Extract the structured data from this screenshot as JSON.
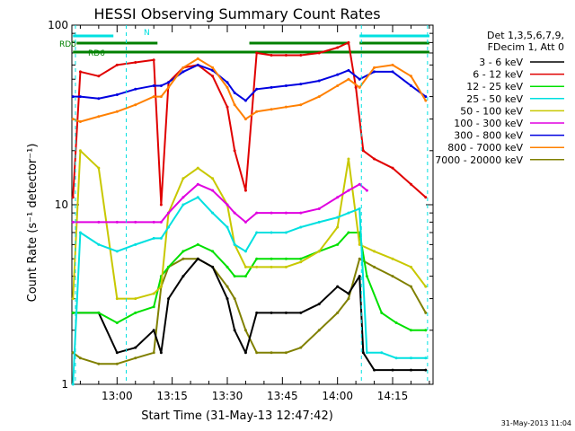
{
  "chart_data": {
    "type": "line",
    "title": "HESSI Observing Summary Count Rates",
    "xlabel": "Start Time (31-May-13 12:47:42)",
    "ylabel": "Count Rate (s⁻¹ detector⁻¹)",
    "y_scale": "log",
    "ylim": [
      1,
      100
    ],
    "xlim": [
      "12:47:42",
      "14:26:00"
    ],
    "x_ticks": [
      "13:00",
      "13:15",
      "13:30",
      "13:45",
      "14:00",
      "14:15"
    ],
    "y_ticks": [
      "1",
      "10",
      "100"
    ],
    "grid": false,
    "legend_position": "right",
    "legend_header": [
      "Det 1,3,5,6,7,9,",
      "FDecim 1, Att 0"
    ],
    "footer": "31-May-2013 11:04",
    "annotations": {
      "N": "N",
      "RD0": "RD0",
      "RD6": "RD6"
    },
    "bars": {
      "N": [
        [
          "12:48",
          "12:59"
        ],
        [
          "14:06",
          "14:25"
        ]
      ],
      "RD0": [
        [
          "12:49",
          "13:11"
        ],
        [
          "13:36",
          "14:03"
        ],
        [
          "14:06",
          "14:25"
        ]
      ],
      "RD6": [
        [
          "12:48",
          "14:25"
        ]
      ]
    },
    "dashed_lines": [
      "12:48:40",
      "13:02:30",
      "14:06:30",
      "14:24:30"
    ],
    "series": [
      {
        "name": "3 - 6 keV",
        "color": "#000000",
        "x": [
          "12:48",
          "12:55",
          "13:00",
          "13:05",
          "13:10",
          "13:12",
          "13:14",
          "13:18",
          "13:22",
          "13:26",
          "13:30",
          "13:32",
          "13:35",
          "13:38",
          "13:42",
          "13:46",
          "13:50",
          "13:55",
          "14:00",
          "14:03",
          "14:06",
          "14:07",
          "14:10",
          "14:15",
          "14:20",
          "14:24"
        ],
        "values": [
          2.5,
          2.5,
          1.5,
          1.6,
          2.0,
          1.5,
          3.0,
          4.0,
          5.0,
          4.5,
          3.0,
          2.0,
          1.5,
          2.5,
          2.5,
          2.5,
          2.5,
          2.8,
          3.5,
          3.2,
          4.0,
          1.5,
          1.2,
          1.2,
          1.2,
          1.2
        ]
      },
      {
        "name": "6 - 12 keV",
        "color": "#e00000",
        "x": [
          "12:48",
          "12:50",
          "12:55",
          "13:00",
          "13:05",
          "13:10",
          "13:12",
          "13:14",
          "13:18",
          "13:22",
          "13:26",
          "13:30",
          "13:32",
          "13:35",
          "13:38",
          "13:42",
          "13:46",
          "13:50",
          "13:55",
          "14:00",
          "14:03",
          "14:05",
          "14:07",
          "14:10",
          "14:15",
          "14:20",
          "14:24"
        ],
        "values": [
          11,
          55,
          52,
          60,
          62,
          64,
          10,
          48,
          58,
          60,
          52,
          35,
          20,
          12,
          70,
          68,
          68,
          68,
          70,
          75,
          80,
          45,
          20,
          18,
          16,
          13,
          11
        ]
      },
      {
        "name": "12 - 25 keV",
        "color": "#00e000",
        "x": [
          "12:48",
          "12:55",
          "13:00",
          "13:05",
          "13:10",
          "13:12",
          "13:14",
          "13:18",
          "13:22",
          "13:26",
          "13:30",
          "13:32",
          "13:35",
          "13:38",
          "13:42",
          "13:46",
          "13:50",
          "13:55",
          "14:00",
          "14:03",
          "14:06",
          "14:08",
          "14:12",
          "14:16",
          "14:20",
          "14:24"
        ],
        "values": [
          2.5,
          2.5,
          2.2,
          2.5,
          2.7,
          4.0,
          4.5,
          5.5,
          6.0,
          5.5,
          4.5,
          4.0,
          4.0,
          5.0,
          5.0,
          5.0,
          5.0,
          5.5,
          6.0,
          7.0,
          7.0,
          4.0,
          2.5,
          2.2,
          2.0,
          2.0
        ]
      },
      {
        "name": "25 - 50 keV",
        "color": "#00e0e0",
        "x": [
          "12:48",
          "12:50",
          "12:55",
          "13:00",
          "13:05",
          "13:10",
          "13:12",
          "13:14",
          "13:18",
          "13:22",
          "13:26",
          "13:30",
          "13:32",
          "13:35",
          "13:38",
          "13:42",
          "13:46",
          "13:50",
          "13:55",
          "14:00",
          "14:03",
          "14:06",
          "14:08",
          "14:12",
          "14:16",
          "14:20",
          "14:24"
        ],
        "values": [
          1.0,
          7.0,
          6.0,
          5.5,
          6.0,
          6.5,
          6.5,
          7.5,
          10,
          11,
          9,
          7.5,
          6.0,
          5.5,
          7.0,
          7.0,
          7.0,
          7.5,
          8.0,
          8.5,
          9.0,
          9.5,
          1.5,
          1.5,
          1.4,
          1.4,
          1.4
        ]
      },
      {
        "name": "50 - 100 keV",
        "color": "#c8c800",
        "x": [
          "12:48",
          "12:50",
          "12:55",
          "13:00",
          "13:05",
          "13:10",
          "13:12",
          "13:14",
          "13:18",
          "13:22",
          "13:26",
          "13:30",
          "13:32",
          "13:35",
          "13:38",
          "13:42",
          "13:46",
          "13:50",
          "13:55",
          "14:00",
          "14:03",
          "14:06",
          "14:10",
          "14:15",
          "14:20",
          "14:24"
        ],
        "values": [
          3.0,
          20,
          16,
          3.0,
          3.0,
          3.2,
          3.5,
          9,
          14,
          16,
          14,
          10,
          6,
          4.5,
          4.5,
          4.5,
          4.5,
          4.8,
          5.5,
          7.5,
          18,
          6.0,
          5.5,
          5.0,
          4.5,
          3.5
        ]
      },
      {
        "name": "100 - 300 keV",
        "color": "#e000e0",
        "x": [
          "12:48",
          "12:55",
          "13:00",
          "13:05",
          "13:10",
          "13:12",
          "13:14",
          "13:18",
          "13:22",
          "13:26",
          "13:30",
          "13:32",
          "13:35",
          "13:38",
          "13:42",
          "13:46",
          "13:50",
          "13:55",
          "14:00",
          "14:03",
          "14:06",
          "14:08"
        ],
        "values": [
          8,
          8,
          8,
          8,
          8,
          8,
          9,
          11,
          13,
          12,
          10,
          9,
          8,
          9,
          9,
          9,
          9,
          9.5,
          11,
          12,
          13,
          12
        ]
      },
      {
        "name": "300 - 800 keV",
        "color": "#0000e0",
        "x": [
          "12:48",
          "12:50",
          "12:55",
          "13:00",
          "13:05",
          "13:10",
          "13:12",
          "13:14",
          "13:18",
          "13:22",
          "13:26",
          "13:30",
          "13:32",
          "13:35",
          "13:38",
          "13:42",
          "13:46",
          "13:50",
          "13:55",
          "14:00",
          "14:03",
          "14:06",
          "14:10",
          "14:15",
          "14:20",
          "14:24"
        ],
        "values": [
          40,
          40,
          39,
          41,
          44,
          46,
          46,
          48,
          55,
          60,
          56,
          48,
          42,
          38,
          44,
          45,
          46,
          47,
          49,
          53,
          56,
          50,
          55,
          55,
          46,
          40
        ]
      },
      {
        "name": "800 - 7000 keV",
        "color": "#ff8000",
        "x": [
          "12:48",
          "12:50",
          "12:55",
          "13:00",
          "13:05",
          "13:10",
          "13:12",
          "13:14",
          "13:18",
          "13:22",
          "13:26",
          "13:30",
          "13:32",
          "13:35",
          "13:38",
          "13:42",
          "13:46",
          "13:50",
          "13:55",
          "14:00",
          "14:03",
          "14:06",
          "14:10",
          "14:15",
          "14:20",
          "14:24"
        ],
        "values": [
          30,
          29,
          31,
          33,
          36,
          40,
          40,
          45,
          58,
          65,
          58,
          45,
          36,
          30,
          33,
          34,
          35,
          36,
          40,
          46,
          50,
          45,
          58,
          60,
          52,
          38
        ]
      },
      {
        "name": "7000 - 20000 keV",
        "color": "#808000",
        "x": [
          "12:48",
          "12:50",
          "12:55",
          "13:00",
          "13:05",
          "13:10",
          "13:12",
          "13:14",
          "13:18",
          "13:22",
          "13:26",
          "13:30",
          "13:32",
          "13:35",
          "13:38",
          "13:42",
          "13:46",
          "13:50",
          "13:55",
          "14:00",
          "14:03",
          "14:06",
          "14:10",
          "14:15",
          "14:20",
          "14:24"
        ],
        "values": [
          1.5,
          1.4,
          1.3,
          1.3,
          1.4,
          1.5,
          3.5,
          4.5,
          5.0,
          5.0,
          4.5,
          3.5,
          3.0,
          2.0,
          1.5,
          1.5,
          1.5,
          1.6,
          2.0,
          2.5,
          3.0,
          5.0,
          4.5,
          4.0,
          3.5,
          2.5
        ]
      }
    ]
  }
}
